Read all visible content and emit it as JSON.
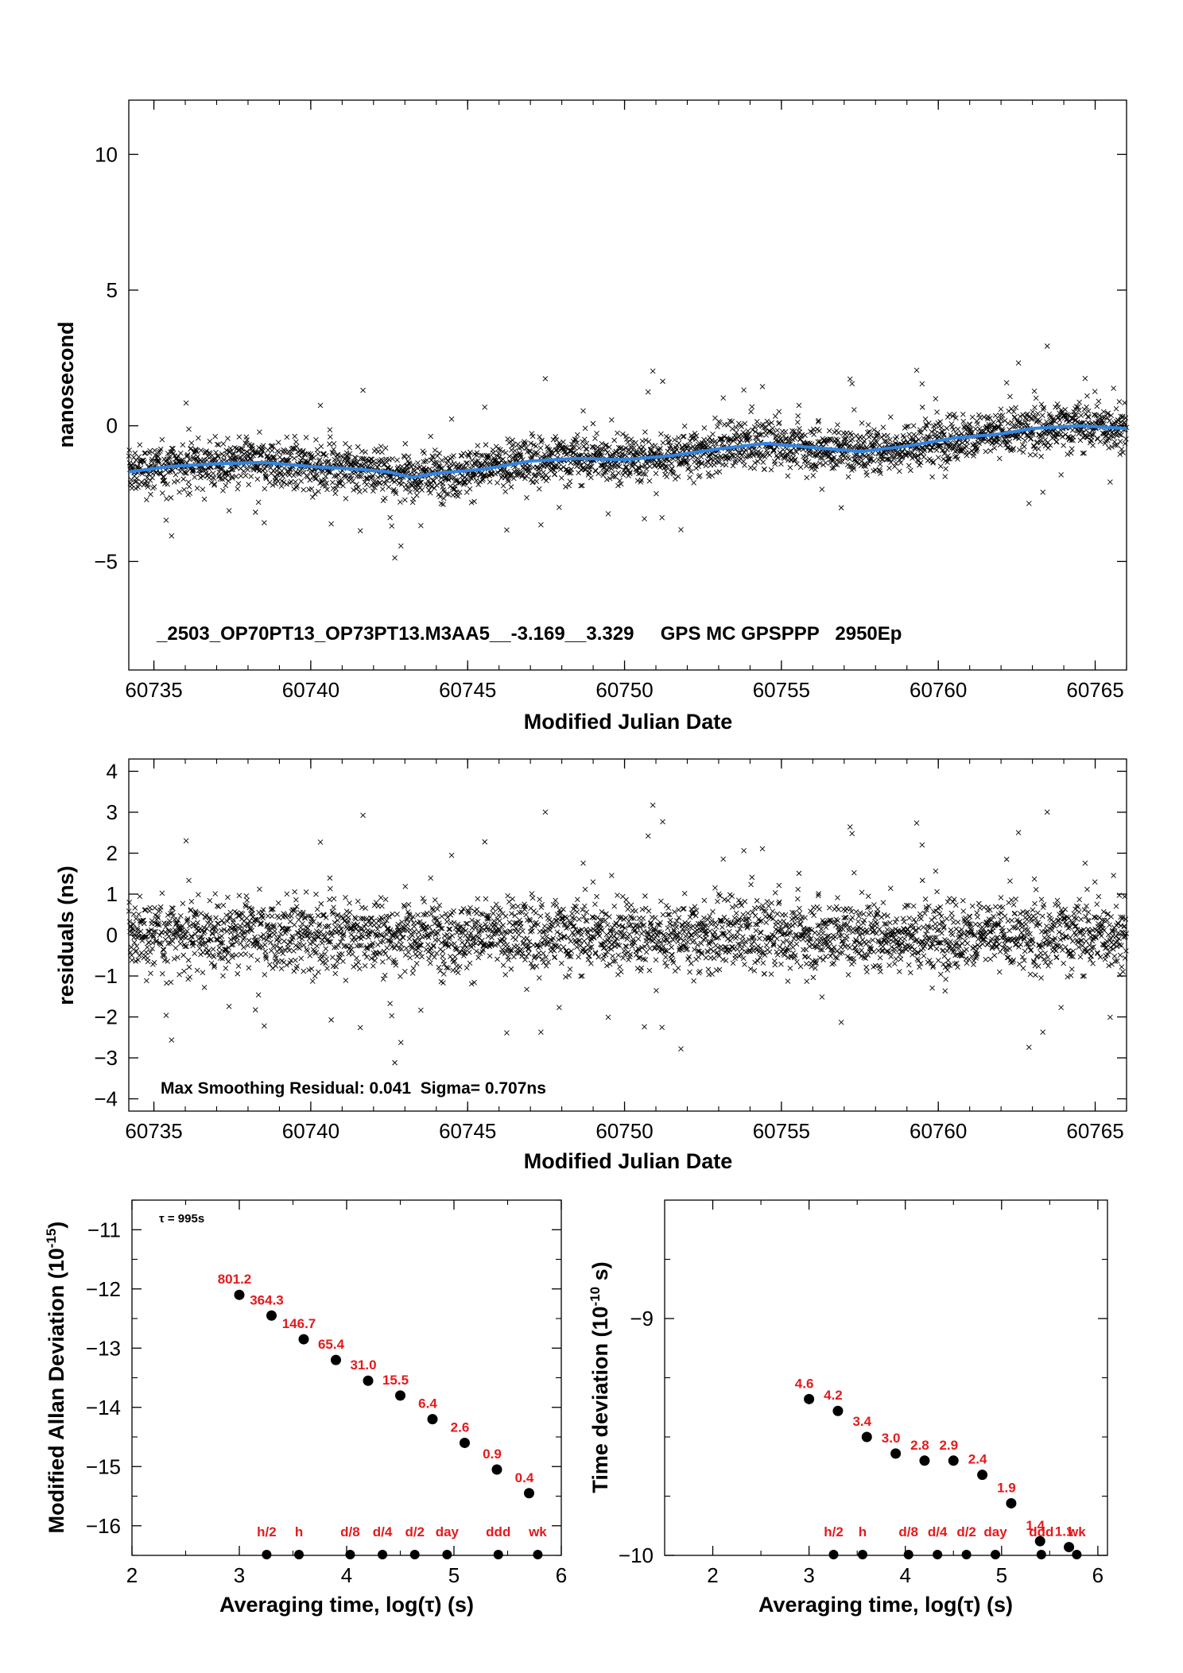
{
  "chart_data": [
    {
      "type": "scatter",
      "ylabel": "nanosecond",
      "xlabel": "Modified Julian Date",
      "xlim": [
        60734.2,
        60766.0
      ],
      "ylim": [
        -9.0,
        12.0
      ],
      "xticks": [
        60735,
        60740,
        60745,
        60750,
        60755,
        60760,
        60765
      ],
      "yticks": [
        -5,
        0,
        5,
        10
      ],
      "annotation": "_2503_OP70PT13_OP73PT13.M3AA5__-3.169__3.329     GPS MC GPSPPP   2950Ep",
      "grid": false,
      "series": [
        {
          "marker": "x",
          "color": "#000000",
          "points": "~2950 epochs, one every ~15 min, scattered about the smoothed curve"
        },
        {
          "marker": "line",
          "color": "#3385e0",
          "x": [
            60734.2,
            60735.5,
            60737.0,
            60738.5,
            60740.0,
            60741.5,
            60742.5,
            60743.2,
            60744.0,
            60745.5,
            60747.0,
            60748.5,
            60750.0,
            60751.5,
            60753.0,
            60754.5,
            60756.0,
            60757.5,
            60759.0,
            60760.5,
            60762.0,
            60763.0,
            60764.5,
            60766.0
          ],
          "y": [
            -1.7,
            -1.5,
            -1.4,
            -1.35,
            -1.5,
            -1.6,
            -1.7,
            -1.9,
            -1.75,
            -1.6,
            -1.3,
            -1.2,
            -1.25,
            -1.1,
            -0.85,
            -0.65,
            -0.8,
            -0.95,
            -0.75,
            -0.45,
            -0.3,
            -0.1,
            0.0,
            -0.1
          ]
        }
      ]
    },
    {
      "type": "scatter",
      "ylabel": "residuals (ns)",
      "xlabel": "Modified Julian Date",
      "xlim": [
        60734.2,
        60766.0
      ],
      "ylim": [
        -4.3,
        4.3
      ],
      "xticks": [
        60735,
        60740,
        60745,
        60750,
        60755,
        60760,
        60765
      ],
      "yticks": [
        -4,
        -3,
        -2,
        -1,
        0,
        1,
        2,
        3,
        4
      ],
      "annotation": "Max Smoothing Residual: 0.041  Sigma= 0.707ns",
      "grid": false
    },
    {
      "type": "scatter",
      "ylabel": "Modified Allan Deviation (10",
      "ylabel_sup": "-15",
      "ylabel_end": ")",
      "xlabel": "Averaging time, log(τ) (s)",
      "xlim": [
        2,
        6
      ],
      "ylim": [
        -16.5,
        -10.5
      ],
      "xticks": [
        2,
        3,
        4,
        5,
        6
      ],
      "yticks": [
        -16,
        -15,
        -14,
        -13,
        -12,
        -11
      ],
      "tau_note": "τ = 995s",
      "x": [
        3.0,
        3.3,
        3.6,
        3.9,
        4.2,
        4.5,
        4.8,
        5.1,
        5.4,
        5.7
      ],
      "y": [
        -12.1,
        -12.45,
        -12.85,
        -13.2,
        -13.55,
        -13.8,
        -14.2,
        -14.6,
        -15.05,
        -15.45
      ],
      "labels": [
        "801.2",
        "364.3",
        "146.7",
        "65.4",
        "31.0",
        "15.5",
        "6.4",
        "2.6",
        "0.9",
        "0.4"
      ],
      "tau_markers": {
        "x": [
          3.255,
          3.556,
          4.033,
          4.334,
          4.635,
          4.936,
          5.413,
          5.781
        ],
        "labels": [
          "h/2",
          "h",
          "d/8",
          "d/4",
          "d/2",
          "day",
          "ddd",
          "wk"
        ]
      }
    },
    {
      "type": "scatter",
      "ylabel": "Time deviation (10",
      "ylabel_sup": "-10",
      "ylabel_end": " s)",
      "xlabel": "Averaging time, log(τ) (s)",
      "xlim": [
        1.5,
        6.1
      ],
      "ylim": [
        -10.0,
        -8.5
      ],
      "xticks": [
        2,
        3,
        4,
        5,
        6
      ],
      "yticks": [
        -10,
        -9
      ],
      "x": [
        3.0,
        3.3,
        3.6,
        3.9,
        4.2,
        4.5,
        4.8,
        5.1,
        5.4,
        5.7
      ],
      "y": [
        -9.34,
        -9.39,
        -9.5,
        -9.57,
        -9.6,
        -9.6,
        -9.66,
        -9.78,
        -9.94,
        -9.965
      ],
      "labels": [
        "4.6",
        "4.2",
        "3.4",
        "3.0",
        "2.8",
        "2.9",
        "2.4",
        "1.9",
        "1.4",
        "1.1"
      ],
      "tau_markers": {
        "x": [
          3.255,
          3.556,
          4.033,
          4.334,
          4.635,
          4.936,
          5.413,
          5.781
        ],
        "labels": [
          "h/2",
          "h",
          "d/8",
          "d/4",
          "d/2",
          "day",
          "ddd",
          "wk"
        ]
      }
    }
  ]
}
